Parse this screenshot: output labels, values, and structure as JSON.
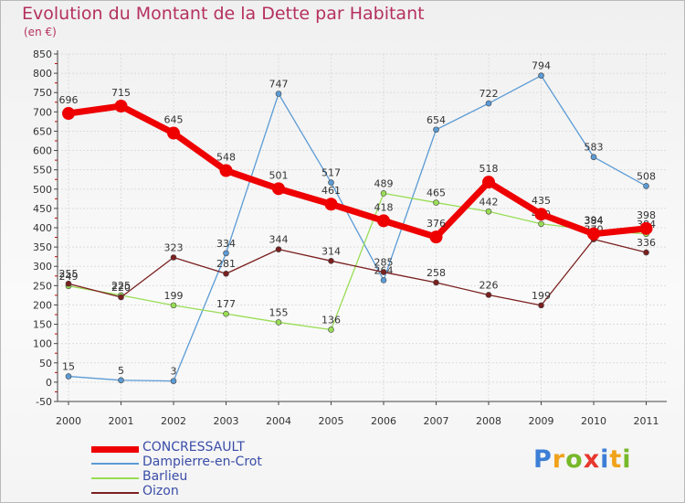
{
  "chart_data": {
    "type": "line",
    "title": "Evolution du Montant de la Dette par Habitant",
    "subtitle": "(en €)",
    "x": [
      "2000",
      "2001",
      "2002",
      "2003",
      "2004",
      "2005",
      "2006",
      "2007",
      "2008",
      "2009",
      "2010",
      "2011"
    ],
    "y_ticks": [
      "-50",
      "0",
      "50",
      "100",
      "150",
      "200",
      "250",
      "300",
      "350",
      "400",
      "450",
      "500",
      "550",
      "600",
      "650",
      "700",
      "750",
      "800",
      "850"
    ],
    "ylim": [
      -50,
      850
    ],
    "grid": true,
    "legend_position": "bottom-left",
    "series": [
      {
        "name": "CONCRESSAULT",
        "color": "#ee0000",
        "values": [
          696,
          715,
          645,
          548,
          501,
          461,
          418,
          376,
          518,
          435,
          384,
          398
        ],
        "labels": [
          "696",
          "715",
          "645",
          "548",
          "501",
          "461",
          "418",
          "376",
          "518",
          "435",
          "384",
          "398"
        ]
      },
      {
        "name": "Dampierre-en-Crot",
        "color": "#5b9bd5",
        "values": [
          15,
          5,
          3,
          334,
          747,
          517,
          264,
          654,
          722,
          794,
          583,
          508
        ],
        "labels": [
          "15",
          "5",
          "3",
          "334",
          "747",
          "517",
          "264",
          "654",
          "722",
          "794",
          "583",
          "508"
        ]
      },
      {
        "name": "Barlieu",
        "color": "#99dd55",
        "values": [
          249,
          225,
          199,
          177,
          155,
          136,
          489,
          465,
          442,
          410,
          394,
          384
        ],
        "labels": [
          "249",
          "225",
          "199",
          "177",
          "155",
          "136",
          "489",
          "465",
          "442",
          "410",
          "394",
          "384"
        ]
      },
      {
        "name": "Oizon",
        "color": "#7b1f1f",
        "values": [
          255,
          220,
          323,
          281,
          344,
          314,
          285,
          258,
          226,
          199,
          370,
          336
        ],
        "labels": [
          "255",
          "220",
          "323",
          "281",
          "344",
          "314",
          "285",
          "258",
          "226",
          "199",
          "370",
          "336"
        ]
      }
    ]
  },
  "brand": {
    "letters": [
      "P",
      "r",
      "o",
      "x",
      "i",
      "t",
      "i"
    ],
    "colors": [
      "#3d7fd6",
      "#f0a21a",
      "#77b82a",
      "#e8372d",
      "#3d7fd6",
      "#f0a21a",
      "#77b82a"
    ]
  }
}
